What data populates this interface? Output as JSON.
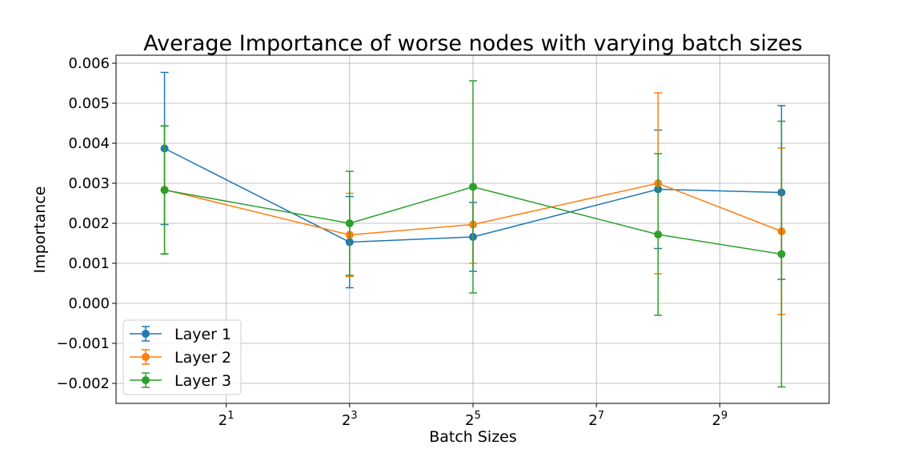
{
  "chart_data": {
    "type": "line",
    "title": "Average Importance of worse nodes with varying batch sizes",
    "xlabel": "Batch Sizes",
    "ylabel": "Importance",
    "x_scale": "log2",
    "x": [
      1,
      8,
      32,
      256,
      1024
    ],
    "xticks": [
      {
        "value": 2,
        "base": "2",
        "exp": "1"
      },
      {
        "value": 8,
        "base": "2",
        "exp": "3"
      },
      {
        "value": 32,
        "base": "2",
        "exp": "5"
      },
      {
        "value": 128,
        "base": "2",
        "exp": "7"
      },
      {
        "value": 512,
        "base": "2",
        "exp": "9"
      }
    ],
    "xlim": [
      0.58,
      1750
    ],
    "ylim": [
      -0.0025,
      0.0062
    ],
    "yticks": [
      -0.002,
      -0.001,
      0.0,
      0.001,
      0.002,
      0.003,
      0.004,
      0.005,
      0.006
    ],
    "ytick_labels": [
      "−0.002",
      "−0.001",
      "0.000",
      "0.001",
      "0.002",
      "0.003",
      "0.004",
      "0.005",
      "0.006"
    ],
    "grid": true,
    "legend_position": "lower-left",
    "series": [
      {
        "name": "Layer 1",
        "color": "#1f77b4",
        "values": [
          0.00387,
          0.00153,
          0.00166,
          0.00285,
          0.00277
        ],
        "err": [
          0.0019,
          0.00114,
          0.00086,
          0.00148,
          0.00217
        ]
      },
      {
        "name": "Layer 2",
        "color": "#ff7f0e",
        "values": [
          0.00284,
          0.00171,
          0.00197,
          0.003,
          0.0018
        ],
        "err": [
          0.0016,
          0.00104,
          0.00097,
          0.00226,
          0.00208
        ]
      },
      {
        "name": "Layer 3",
        "color": "#2ca02c",
        "values": [
          0.00283,
          0.002,
          0.00291,
          0.00172,
          0.00123
        ],
        "err": [
          0.0016,
          0.0013,
          0.00265,
          0.00202,
          0.00332
        ]
      }
    ]
  }
}
